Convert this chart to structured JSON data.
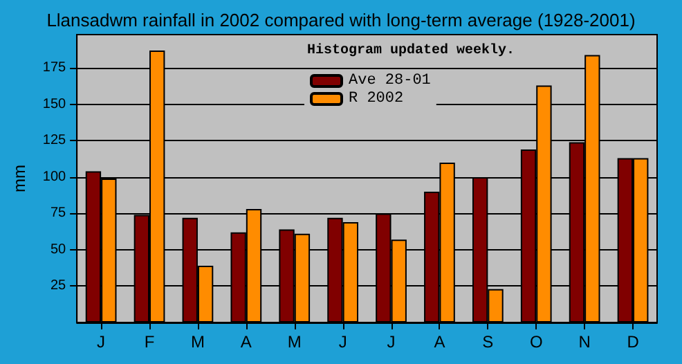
{
  "chart_data": {
    "type": "bar",
    "title": "Llansadwm rainfall in 2002 compared with long-term average (1928-2001)",
    "ylabel": "mm",
    "annotations": [
      "Histogram updated weekly."
    ],
    "categories": [
      "J",
      "F",
      "M",
      "A",
      "M",
      "J",
      "J",
      "A",
      "S",
      "O",
      "N",
      "D"
    ],
    "series": [
      {
        "name": "Ave 28-01",
        "color": "#800000",
        "values": [
          104,
          74,
          72,
          62,
          64,
          72,
          75,
          90,
          100,
          119,
          124,
          113
        ]
      },
      {
        "name": "R 2002",
        "color": "#ff8c00",
        "values": [
          99,
          187,
          39,
          78,
          61,
          69,
          57,
          110,
          23,
          163,
          184,
          113
        ]
      }
    ],
    "ylim": [
      0,
      198
    ],
    "yticks": [
      25,
      50,
      75,
      100,
      125,
      150,
      175
    ],
    "grid": "y",
    "legend": "top"
  }
}
